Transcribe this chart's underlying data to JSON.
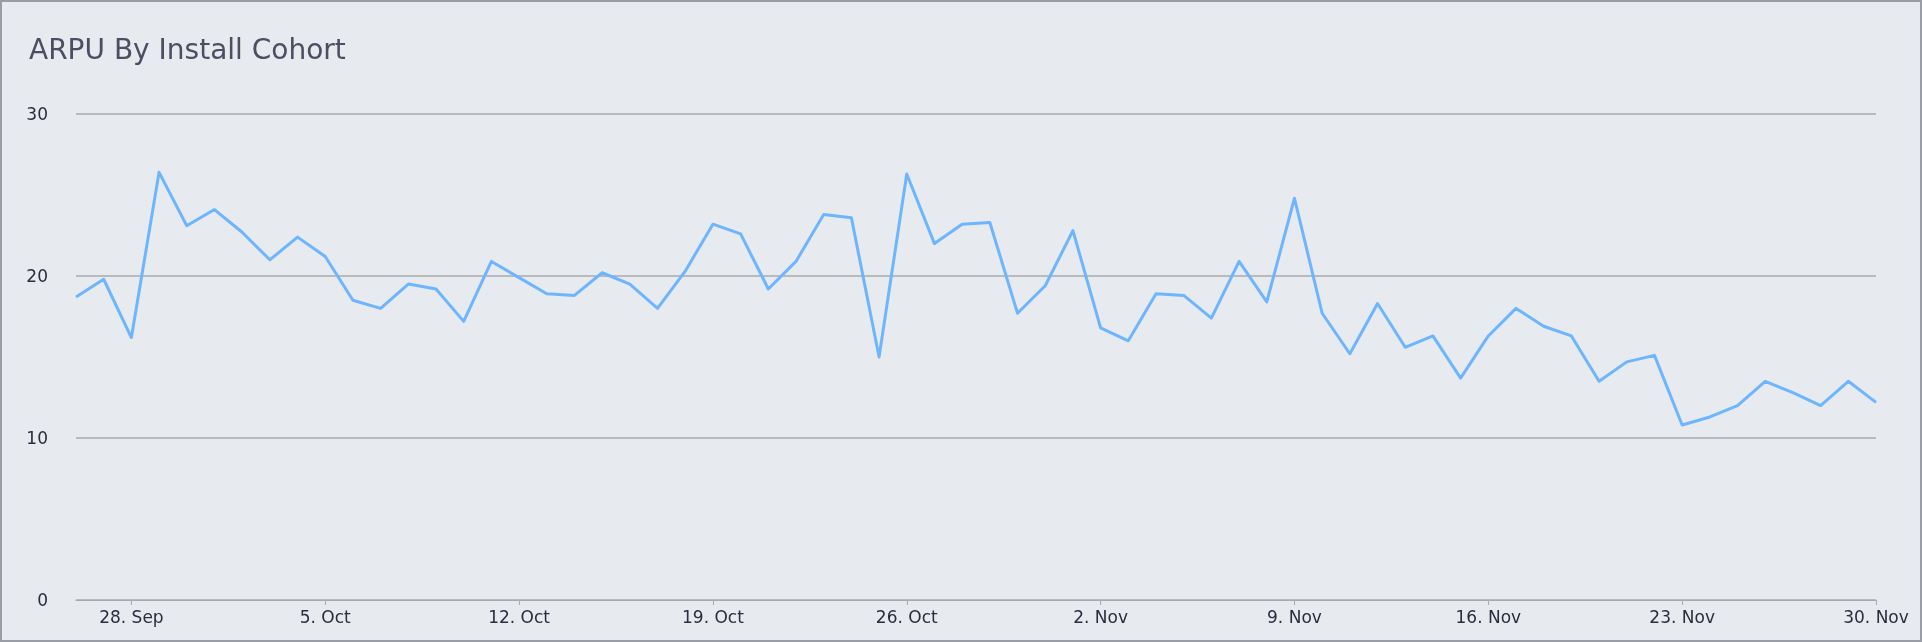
{
  "chart_data": {
    "type": "line",
    "title": "ARPU By Install Cohort",
    "x": [
      "--09-26",
      "--09-27",
      "--09-28",
      "--09-29",
      "--09-30",
      "--10-01",
      "--10-02",
      "--10-03",
      "--10-04",
      "--10-05",
      "--10-06",
      "--10-07",
      "--10-08",
      "--10-09",
      "--10-10",
      "--10-11",
      "--10-12",
      "--10-13",
      "--10-14",
      "--10-15",
      "--10-16",
      "--10-17",
      "--10-18",
      "--10-19",
      "--10-20",
      "--10-21",
      "--10-22",
      "--10-23",
      "--10-24",
      "--10-25",
      "--10-26",
      "--10-27",
      "--10-28",
      "--10-29",
      "--10-30",
      "--10-31",
      "--11-01",
      "--11-02",
      "--11-03",
      "--11-04",
      "--11-05",
      "--11-06",
      "--11-07",
      "--11-08",
      "--11-09",
      "--11-10",
      "--11-11",
      "--11-12",
      "--11-13",
      "--11-14",
      "--11-15",
      "--11-16",
      "--11-17",
      "--11-18",
      "--11-19",
      "--11-20",
      "--11-21",
      "--11-22",
      "--11-23",
      "--11-24",
      "--11-25",
      "--11-26",
      "--11-27",
      "--11-28",
      "--11-29",
      "--11-30"
    ],
    "series": [
      {
        "color": "#6db6ff",
        "values": [
          18.7,
          19.8,
          16.2,
          26.4,
          23.1,
          24.1,
          22.7,
          21.0,
          22.4,
          21.2,
          18.5,
          18.0,
          19.5,
          19.2,
          17.2,
          20.9,
          19.9,
          18.9,
          18.8,
          20.2,
          19.5,
          18.0,
          20.3,
          23.2,
          22.6,
          19.2,
          20.9,
          23.8,
          23.6,
          15.0,
          26.3,
          22.0,
          23.2,
          23.3,
          17.7,
          19.4,
          22.8,
          16.8,
          16.0,
          18.9,
          18.8,
          17.4,
          20.9,
          18.4,
          24.8,
          17.7,
          15.2,
          18.3,
          15.6,
          16.3,
          13.7,
          16.3,
          18.0,
          16.9,
          16.3,
          13.5,
          14.7,
          15.1,
          10.8,
          11.3,
          12.0,
          13.5,
          12.8,
          12.0,
          13.5,
          12.2
        ]
      }
    ],
    "xlim": [
      "--09-26",
      "--11-30"
    ],
    "xticks": [
      {
        "value": "--09-28",
        "label": "28. Sep"
      },
      {
        "value": "--10-05",
        "label": "5. Oct"
      },
      {
        "value": "--10-12",
        "label": "12. Oct"
      },
      {
        "value": "--10-19",
        "label": "19. Oct"
      },
      {
        "value": "--10-26",
        "label": "26. Oct"
      },
      {
        "value": "--11-02",
        "label": "2. Nov"
      },
      {
        "value": "--11-09",
        "label": "9. Nov"
      },
      {
        "value": "--11-16",
        "label": "16. Nov"
      },
      {
        "value": "--11-23",
        "label": "23. Nov"
      },
      {
        "value": "--11-30",
        "label": "30. Nov"
      }
    ],
    "ylim": [
      0,
      30
    ],
    "yticks": [
      0,
      10,
      20,
      30
    ],
    "grid": "y",
    "marker": "none",
    "line_style": "solid"
  }
}
